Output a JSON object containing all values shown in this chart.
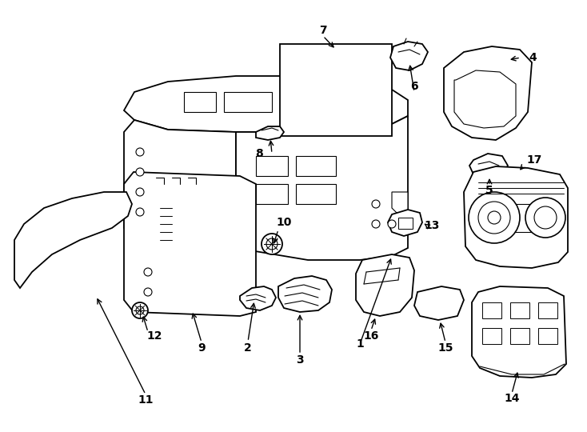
{
  "bg_color": "#ffffff",
  "line_color": "#000000",
  "lw": 1.3,
  "fig_w": 7.34,
  "fig_h": 5.4,
  "dpi": 100
}
